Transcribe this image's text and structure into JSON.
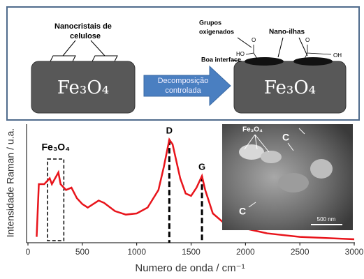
{
  "schematic": {
    "left_label": [
      "Nanocristais de",
      "celulose"
    ],
    "left_block": "Fe₃O₄",
    "arrow_label": [
      "Decomposição",
      "controlada"
    ],
    "groups_label": [
      "Grupos",
      "oxigenados"
    ],
    "islands_label": "Nano-ilhas",
    "interface_label": "Boa interface",
    "chem": [
      "HO",
      "O",
      "O",
      "OH"
    ],
    "right_block": "Fe₃O₄"
  },
  "chart_data": {
    "type": "line",
    "xlabel": "Numero de onda / cm⁻¹",
    "ylabel": "Intensidade Raman / u.a.",
    "x": [
      80,
      100,
      150,
      200,
      220,
      280,
      300,
      350,
      400,
      450,
      500,
      550,
      600,
      650,
      700,
      800,
      900,
      1000,
      1100,
      1200,
      1250,
      1300,
      1330,
      1400,
      1450,
      1500,
      1550,
      1600,
      1630,
      1700,
      1800,
      2000,
      2200,
      2500,
      3000
    ],
    "series": [
      {
        "color": "#e8141b",
        "values": [
          0.05,
          0.5,
          0.5,
          0.55,
          0.5,
          0.6,
          0.5,
          0.45,
          0.47,
          0.38,
          0.33,
          0.3,
          0.33,
          0.36,
          0.34,
          0.27,
          0.24,
          0.25,
          0.3,
          0.45,
          0.65,
          0.88,
          0.84,
          0.55,
          0.42,
          0.4,
          0.47,
          0.57,
          0.45,
          0.25,
          0.17,
          0.12,
          0.08,
          0.05,
          0.03
        ]
      }
    ],
    "xlim": [
      0,
      3000
    ],
    "xticks": [
      0,
      500,
      1000,
      1500,
      2000,
      2500,
      3000
    ],
    "ylim": [
      0,
      1
    ],
    "reference_lines": [
      {
        "x": 1300,
        "label": "D"
      },
      {
        "x": 1600,
        "label": "G"
      }
    ],
    "highlight": {
      "xlim": [
        180,
        330
      ],
      "label": "Fe₃O₄"
    },
    "inset": {
      "labels": [
        "Fe₃O₄",
        "C",
        "C"
      ],
      "scale_bar": "500 nm"
    }
  }
}
